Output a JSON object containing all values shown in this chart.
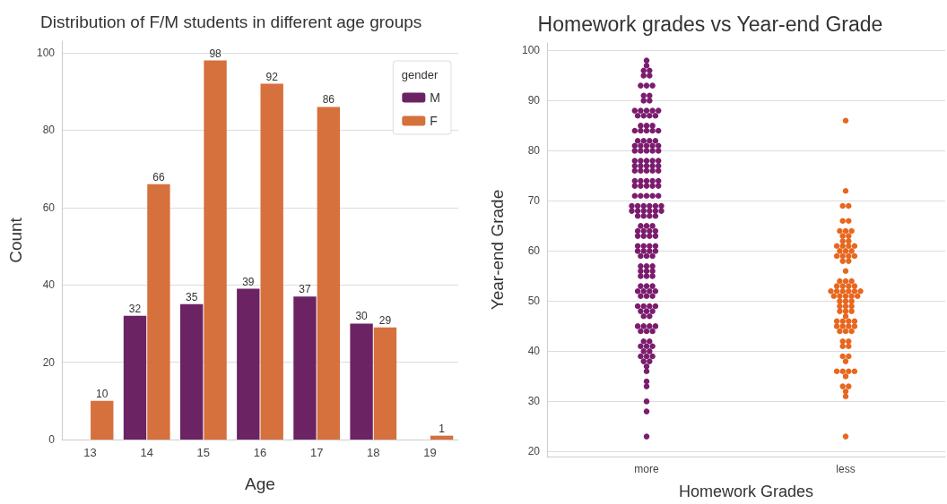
{
  "chart_data": [
    {
      "type": "bar",
      "title": "Distribution of F/M students in different age groups",
      "xlabel": "Age",
      "ylabel": "Count",
      "legend_title": "gender",
      "categories": [
        "13",
        "14",
        "15",
        "16",
        "17",
        "18",
        "19"
      ],
      "series": [
        {
          "name": "M",
          "color": "#6b2363",
          "values": [
            null,
            32,
            35,
            39,
            37,
            30,
            null
          ]
        },
        {
          "name": "F",
          "color": "#d6703d",
          "values": [
            10,
            66,
            98,
            92,
            86,
            29,
            1
          ]
        }
      ],
      "ylim": [
        0,
        103
      ],
      "yticks": [
        0,
        20,
        40,
        60,
        80,
        100
      ],
      "grid": "y",
      "legend": "top right",
      "data_labels": true
    },
    {
      "type": "scatter",
      "title": "Homework grades vs Year-end Grade",
      "xlabel": "Homework Grades",
      "ylabel": "Year-end Grade",
      "categories": [
        "more",
        "less"
      ],
      "series": [
        {
          "color": "#7b1c6e",
          "x": [
            "more",
            "more",
            "more",
            "more",
            "more",
            "more",
            "more",
            "more",
            "more",
            "more",
            "more",
            "more",
            "more",
            "more",
            "more",
            "more",
            "more",
            "more",
            "more",
            "more",
            "more",
            "more",
            "more",
            "more",
            "more",
            "more",
            "more",
            "more",
            "more",
            "more",
            "more",
            "more",
            "more",
            "more",
            "more",
            "more",
            "more",
            "more",
            "more",
            "more",
            "more",
            "more",
            "more",
            "more",
            "more",
            "more",
            "more",
            "more",
            "more",
            "more",
            "more",
            "more",
            "more",
            "more",
            "more",
            "more",
            "more",
            "more",
            "more",
            "more",
            "more",
            "more",
            "more",
            "more",
            "more",
            "more",
            "more",
            "more",
            "more",
            "more",
            "more",
            "more",
            "more",
            "more",
            "more",
            "more",
            "more",
            "more",
            "more",
            "more",
            "more",
            "more",
            "more",
            "more",
            "more",
            "more",
            "more",
            "more",
            "more",
            "more",
            "more",
            "more",
            "more",
            "more",
            "more",
            "more",
            "more",
            "more",
            "more",
            "more",
            "more",
            "more",
            "more",
            "more",
            "more",
            "more",
            "more",
            "more",
            "more",
            "more",
            "more",
            "more",
            "more",
            "more",
            "more",
            "more",
            "more",
            "more",
            "more",
            "more",
            "more",
            "more",
            "more",
            "more",
            "more",
            "more",
            "more",
            "more",
            "more",
            "more",
            "more",
            "more",
            "more",
            "more",
            "more",
            "more",
            "more",
            "more",
            "more",
            "more",
            "more",
            "more",
            "more",
            "more",
            "more",
            "more",
            "more",
            "more",
            "more",
            "more",
            "more",
            "more",
            "more",
            "more",
            "more",
            "more",
            "more",
            "more",
            "more",
            "more",
            "more",
            "more",
            "more",
            "more",
            "more",
            "more"
          ],
          "values": [
            98,
            97,
            96,
            96,
            95,
            95,
            93,
            93,
            93,
            91,
            91,
            90,
            90,
            88,
            88,
            88,
            88,
            88,
            87,
            87,
            87,
            87,
            85,
            85,
            85,
            84,
            84,
            84,
            84,
            84,
            82,
            82,
            82,
            82,
            81,
            81,
            81,
            81,
            81,
            80,
            80,
            80,
            80,
            80,
            78,
            78,
            78,
            78,
            78,
            77,
            77,
            77,
            77,
            77,
            76,
            76,
            76,
            76,
            76,
            74,
            74,
            74,
            74,
            74,
            73,
            73,
            73,
            73,
            73,
            71,
            71,
            71,
            71,
            71,
            69,
            69,
            69,
            69,
            69,
            69,
            68,
            68,
            68,
            68,
            68,
            68,
            67,
            67,
            67,
            67,
            65,
            65,
            65,
            64,
            64,
            64,
            64,
            63,
            63,
            63,
            63,
            61,
            61,
            61,
            61,
            60,
            60,
            60,
            60,
            59,
            59,
            59,
            57,
            57,
            57,
            56,
            56,
            56,
            55,
            55,
            55,
            53,
            53,
            53,
            52,
            52,
            52,
            52,
            51,
            51,
            51,
            49,
            49,
            49,
            49,
            48,
            48,
            48,
            47,
            47,
            45,
            45,
            45,
            45,
            44,
            44,
            44,
            42,
            42,
            41,
            41,
            41,
            40,
            40,
            39,
            39,
            39,
            38,
            38,
            37,
            36,
            34,
            33,
            30,
            28,
            23
          ]
        },
        {
          "color": "#e8671f",
          "x": [
            "less",
            "less",
            "less",
            "less",
            "less",
            "less",
            "less",
            "less",
            "less",
            "less",
            "less",
            "less",
            "less",
            "less",
            "less",
            "less",
            "less",
            "less",
            "less",
            "less",
            "less",
            "less",
            "less",
            "less",
            "less",
            "less",
            "less",
            "less",
            "less",
            "less",
            "less",
            "less",
            "less",
            "less",
            "less",
            "less",
            "less",
            "less",
            "less",
            "less",
            "less",
            "less",
            "less",
            "less",
            "less",
            "less",
            "less",
            "less",
            "less",
            "less",
            "less",
            "less",
            "less",
            "less",
            "less",
            "less",
            "less",
            "less",
            "less",
            "less",
            "less",
            "less",
            "less",
            "less",
            "less",
            "less",
            "less",
            "less",
            "less",
            "less",
            "less",
            "less",
            "less",
            "less",
            "less",
            "less",
            "less",
            "less",
            "less",
            "less",
            "less",
            "less",
            "less"
          ],
          "values": [
            86,
            72,
            69,
            69,
            66,
            66,
            64,
            64,
            64,
            63,
            63,
            62,
            62,
            61,
            61,
            61,
            61,
            60,
            60,
            60,
            59,
            59,
            59,
            59,
            58,
            58,
            56,
            54,
            54,
            54,
            53,
            53,
            53,
            53,
            52,
            52,
            52,
            52,
            52,
            52,
            51,
            51,
            51,
            51,
            51,
            50,
            50,
            50,
            49,
            49,
            49,
            48,
            48,
            48,
            47,
            46,
            46,
            46,
            46,
            45,
            45,
            45,
            45,
            44,
            44,
            44,
            42,
            42,
            41,
            41,
            39,
            39,
            38,
            36,
            36,
            36,
            36,
            35,
            33,
            33,
            32,
            31,
            23
          ]
        }
      ],
      "ylim": [
        19,
        101.5
      ],
      "yticks": [
        20,
        30,
        40,
        50,
        60,
        70,
        80,
        90,
        100
      ],
      "grid": "y",
      "marker": "circle"
    }
  ]
}
